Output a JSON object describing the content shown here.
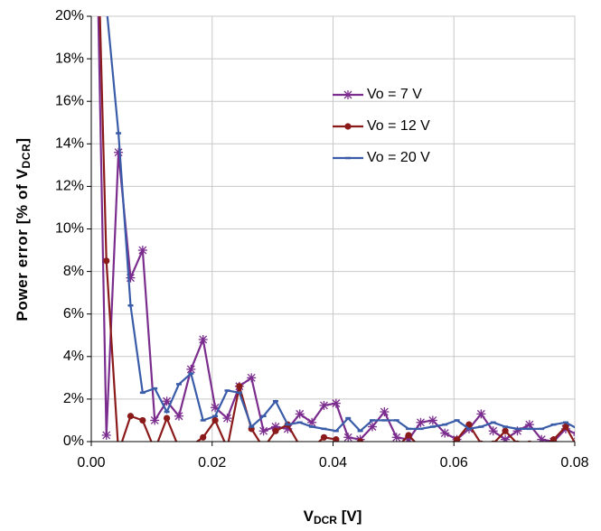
{
  "chart_data": {
    "type": "line",
    "ylabel": [
      "Power error [% of V",
      "DCR",
      "]"
    ],
    "xlabel": [
      "V",
      "DCR",
      " [V]"
    ],
    "x": [
      0.0005,
      0.0025,
      0.0045,
      0.0065,
      0.0085,
      0.0105,
      0.0125,
      0.0145,
      0.0165,
      0.0185,
      0.0205,
      0.0225,
      0.0245,
      0.0265,
      0.0285,
      0.0305,
      0.0325,
      0.0345,
      0.0365,
      0.0385,
      0.0405,
      0.0425,
      0.0445,
      0.0465,
      0.0485,
      0.0505,
      0.0525,
      0.0545,
      0.0565,
      0.0585,
      0.0605,
      0.0625,
      0.0645,
      0.0665,
      0.0685,
      0.0705,
      0.0725,
      0.0745,
      0.0765,
      0.0785,
      0.0805
    ],
    "series": [
      {
        "name": "Vo = 7 V",
        "color": "#7b2d8e",
        "marker": "asterisk",
        "values": [
          30,
          0.3,
          13.6,
          7.7,
          9.0,
          1.0,
          1.9,
          1.2,
          3.4,
          4.8,
          1.6,
          1.1,
          2.6,
          3.0,
          0.5,
          0.7,
          0.6,
          1.3,
          0.9,
          1.7,
          1.8,
          0.2,
          0.1,
          0.7,
          1.4,
          0.2,
          0.1,
          0.9,
          1.0,
          0.4,
          0.1,
          0.6,
          1.3,
          0.5,
          0.1,
          0.5,
          0.8,
          0.1,
          0.0,
          0.6,
          0.3
        ]
      },
      {
        "name": "Vo = 12 V",
        "color": "#8b1a1a",
        "marker": "circle",
        "values": [
          30,
          8.5,
          -0.5,
          1.2,
          1.0,
          -0.4,
          1.1,
          -0.3,
          -0.2,
          0.2,
          1.0,
          -0.3,
          2.6,
          0.6,
          -0.3,
          0.5,
          0.8,
          -0.2,
          -0.3,
          0.2,
          0.1,
          -0.5,
          0.0,
          -0.3,
          -0.2,
          -0.3,
          0.3,
          -0.3,
          -0.2,
          -0.3,
          0.1,
          0.8,
          -0.1,
          -0.1,
          0.5,
          -0.1,
          -0.1,
          -0.2,
          0.1,
          0.7,
          -0.3
        ]
      },
      {
        "name": "Vo = 20 V",
        "color": "#3a5ca8",
        "marker": "dash",
        "values": [
          30,
          20.5,
          14.5,
          6.4,
          2.3,
          2.5,
          1.4,
          2.7,
          3.2,
          1.0,
          1.2,
          2.4,
          2.3,
          0.7,
          1.2,
          1.9,
          0.8,
          0.9,
          0.7,
          0.6,
          0.5,
          1.1,
          0.5,
          1.0,
          1.0,
          1.0,
          0.6,
          0.6,
          0.7,
          0.8,
          1.0,
          0.6,
          0.7,
          0.9,
          0.7,
          0.6,
          0.6,
          0.6,
          0.8,
          0.9,
          0.6
        ]
      }
    ],
    "xlim": [
      0,
      0.08
    ],
    "xticks": [
      {
        "value": 0,
        "label": "0.00"
      },
      0.02,
      0.04,
      0.06,
      0.08
    ],
    "ylim": [
      0,
      20
    ],
    "yticks": [
      {
        "value": 0,
        "label": "0%"
      },
      {
        "value": 2,
        "label": "2%"
      },
      {
        "value": 4,
        "label": "4%"
      },
      {
        "value": 6,
        "label": "6%"
      },
      {
        "value": 8,
        "label": "8%"
      },
      {
        "value": 10,
        "label": "10%"
      },
      {
        "value": 12,
        "label": "12%"
      },
      {
        "value": 14,
        "label": "14%"
      },
      {
        "value": 16,
        "label": "16%"
      },
      {
        "value": 18,
        "label": "18%"
      },
      {
        "value": 20,
        "label": "20%"
      }
    ],
    "grid": true,
    "legend": "upper-center"
  }
}
